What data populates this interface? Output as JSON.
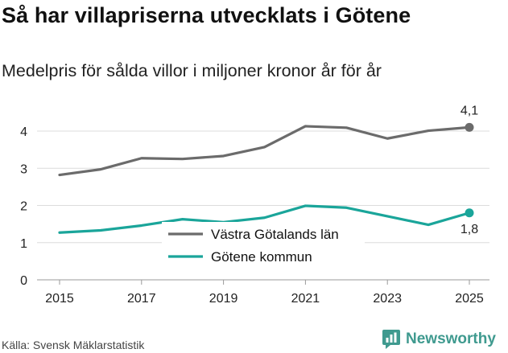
{
  "title": "Så har villapriserna utvecklats i Götene",
  "subtitle": "Medelpris för sålda villor i miljoner kronor år för år",
  "source": "Källa: Svensk Mäklarstatistik",
  "brand": "Newsworthy",
  "chart_data": {
    "type": "line",
    "x": [
      2015,
      2016,
      2017,
      2018,
      2019,
      2020,
      2021,
      2022,
      2023,
      2024,
      2025
    ],
    "x_tick_labels": [
      "2015",
      "2017",
      "2019",
      "2021",
      "2023",
      "2025"
    ],
    "y_tick_labels": [
      "0",
      "1",
      "2",
      "3",
      "4"
    ],
    "ylim": [
      0,
      4.7
    ],
    "xlabel": "",
    "ylabel": "",
    "grid": true,
    "series": [
      {
        "name": "Västra Götalands län",
        "color": "#6b6b6b",
        "values": [
          2.82,
          2.97,
          3.27,
          3.25,
          3.33,
          3.57,
          4.13,
          4.09,
          3.8,
          4.01,
          4.1
        ],
        "end_label": "4,1"
      },
      {
        "name": "Götene kommun",
        "color": "#1aa59a",
        "values": [
          1.27,
          1.33,
          1.46,
          1.63,
          1.55,
          1.67,
          1.99,
          1.94,
          1.71,
          1.48,
          1.8
        ],
        "end_label": "1,8"
      }
    ],
    "legend_position": "bottom-center"
  }
}
